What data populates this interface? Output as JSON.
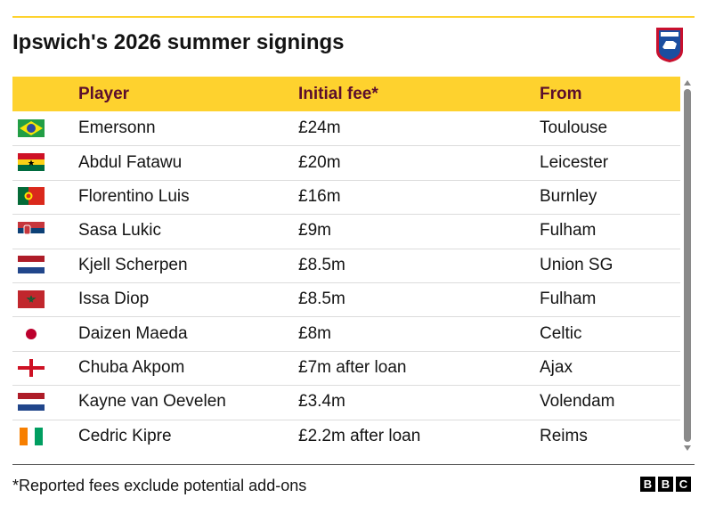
{
  "header": {
    "title": "Ipswich's 2026 summer signings"
  },
  "table": {
    "columns": [
      "Player",
      "Initial fee*",
      "From"
    ],
    "rows": [
      [
        "Emersonn",
        "£24m",
        "Toulouse"
      ],
      [
        "Abdul Fatawu",
        "£20m",
        "Leicester"
      ],
      [
        "Florentino Luis",
        "£16m",
        "Burnley"
      ],
      [
        "Sasa Lukic",
        "£9m",
        "Fulham"
      ],
      [
        "Kjell Scherpen",
        "£8.5m",
        "Union SG"
      ],
      [
        "Issa Diop",
        "£8.5m",
        "Fulham"
      ],
      [
        "Daizen Maeda",
        "£8m",
        "Celtic"
      ],
      [
        "Chuba Akpom",
        "£7m after loan",
        "Ajax"
      ],
      [
        "Kayne van Oevelen",
        "£3.4m",
        "Volendam"
      ],
      [
        "Cedric Kipre",
        "£2.2m after loan",
        "Reims"
      ]
    ]
  },
  "footer": {
    "note": "*Reported fees exclude potential add-ons",
    "logo": [
      "B",
      "B",
      "C"
    ]
  }
}
